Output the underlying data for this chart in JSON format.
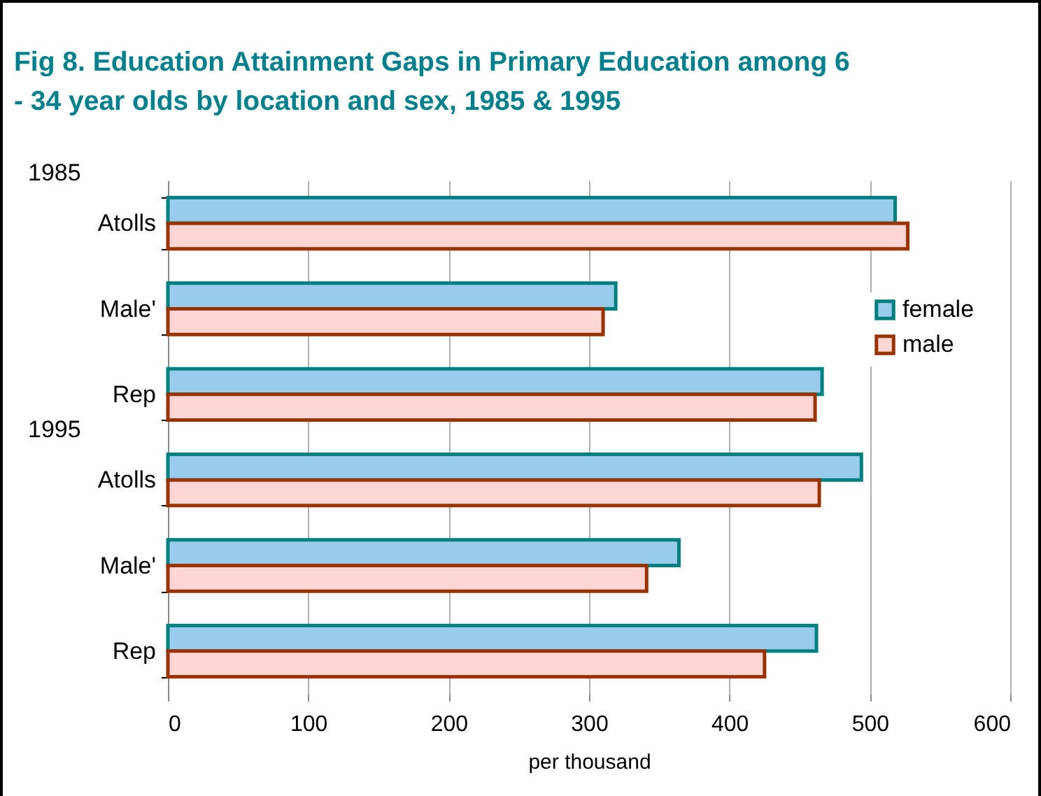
{
  "chart_data": {
    "type": "bar",
    "orientation": "horizontal",
    "title": "Fig 8. Education Attainment Gaps in Primary Education among 6 - 34 year olds by location and sex, 1985 & 1995",
    "categories": [
      "Atolls",
      "Male'",
      "Rep",
      "Atolls",
      "Male'",
      "Rep"
    ],
    "annotations": [
      "1985",
      "1995"
    ],
    "series": [
      {
        "name": "female",
        "color": "#99ccec",
        "values": [
          518,
          319,
          466,
          494,
          364,
          462
        ]
      },
      {
        "name": "male",
        "color": "#ffd6d6",
        "values": [
          527,
          310,
          461,
          464,
          341,
          425
        ]
      }
    ],
    "xlabel": "per thousand",
    "xlim": [
      0,
      600
    ],
    "xticks": [
      0,
      100,
      200,
      300,
      400,
      500,
      600
    ],
    "grid": "x",
    "legend": "right"
  }
}
